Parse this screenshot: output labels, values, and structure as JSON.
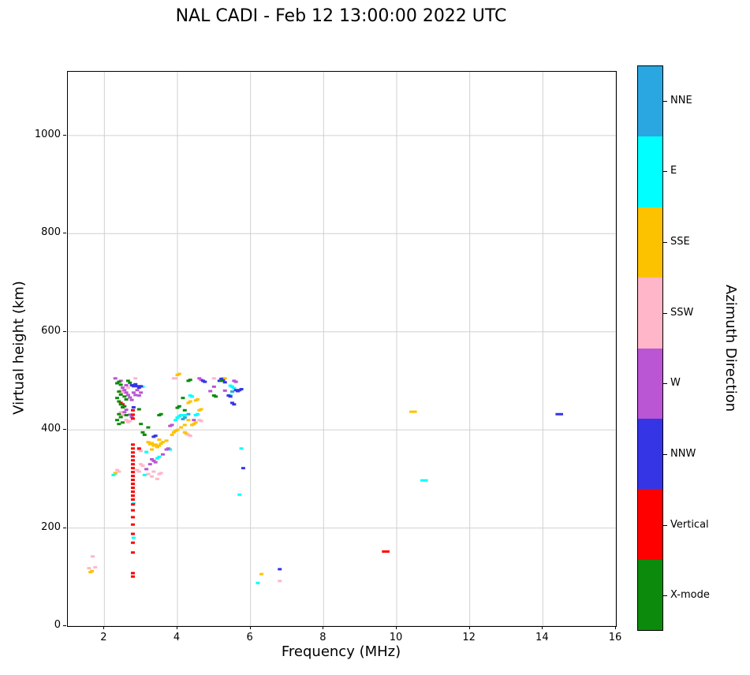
{
  "title": "NAL CADI - Feb 12 13:00:00 2022 UTC",
  "chart_data": {
    "type": "scatter",
    "title": "NAL CADI - Feb 12 13:00:00 2022 UTC",
    "xlabel": "Frequency (MHz)",
    "ylabel": "Virtual height (km)",
    "xlim": [
      1,
      16
    ],
    "ylim": [
      0,
      1130
    ],
    "x_ticks": [
      2,
      4,
      6,
      8,
      10,
      12,
      14,
      16
    ],
    "y_ticks": [
      0,
      200,
      400,
      600,
      800,
      1000
    ],
    "grid": true,
    "grid_color": "#d0d0d0",
    "marker": "horizontal-dash",
    "colorbar": {
      "label": "Azimuth Direction",
      "entries": [
        {
          "label": "NNE",
          "color": "#2aa7e0"
        },
        {
          "label": "E",
          "color": "#00ffff"
        },
        {
          "label": "SSE",
          "color": "#fcc200"
        },
        {
          "label": "SSW",
          "color": "#ffb6c9"
        },
        {
          "label": "W",
          "color": "#ba55d3"
        },
        {
          "label": "NNW",
          "color": "#3535e6"
        },
        {
          "label": "Vertical",
          "color": "#ff0000"
        },
        {
          "label": "X-mode",
          "color": "#0c8a0c"
        }
      ]
    },
    "series": [
      {
        "name": "NNE",
        "color": "#2aa7e0",
        "points": [
          [
            4.15,
            422
          ],
          [
            4.2,
            425
          ],
          [
            4.3,
            432
          ],
          [
            5.5,
            478
          ]
        ]
      },
      {
        "name": "E",
        "color": "#00ffff",
        "points": [
          [
            2.25,
            308
          ],
          [
            2.3,
            311
          ],
          [
            2.8,
            180
          ],
          [
            2.8,
            250
          ],
          [
            3.05,
            488
          ],
          [
            3.1,
            308
          ],
          [
            3.15,
            355
          ],
          [
            3.45,
            342
          ],
          [
            3.5,
            345
          ],
          [
            3.8,
            360
          ],
          [
            3.95,
            420
          ],
          [
            4.0,
            425
          ],
          [
            4.05,
            428
          ],
          [
            4.1,
            430
          ],
          [
            4.2,
            430
          ],
          [
            4.35,
            470
          ],
          [
            4.4,
            468
          ],
          [
            4.5,
            430
          ],
          [
            4.55,
            432
          ],
          [
            5.45,
            470
          ],
          [
            5.45,
            490
          ],
          [
            5.5,
            488
          ],
          [
            5.55,
            485
          ],
          [
            5.7,
            268
          ],
          [
            5.75,
            362
          ],
          [
            6.2,
            88
          ],
          [
            10.7,
            297
          ],
          [
            10.8,
            297
          ]
        ]
      },
      {
        "name": "SSE",
        "color": "#fcc200",
        "points": [
          [
            1.62,
            110
          ],
          [
            1.66,
            112
          ],
          [
            2.3,
            312
          ],
          [
            3.2,
            375
          ],
          [
            3.25,
            371
          ],
          [
            3.3,
            373
          ],
          [
            3.3,
            360
          ],
          [
            3.35,
            368
          ],
          [
            3.4,
            370
          ],
          [
            3.45,
            365
          ],
          [
            3.5,
            368
          ],
          [
            3.5,
            380
          ],
          [
            3.55,
            372
          ],
          [
            3.6,
            375
          ],
          [
            3.7,
            378
          ],
          [
            3.85,
            390
          ],
          [
            3.9,
            395
          ],
          [
            3.95,
            398
          ],
          [
            4.0,
            400
          ],
          [
            4.1,
            405
          ],
          [
            4.2,
            410
          ],
          [
            4.2,
            395
          ],
          [
            4.25,
            392
          ],
          [
            4.3,
            420
          ],
          [
            4.3,
            455
          ],
          [
            4.35,
            458
          ],
          [
            4.4,
            410
          ],
          [
            4.45,
            412
          ],
          [
            4.5,
            415
          ],
          [
            4.5,
            460
          ],
          [
            4.55,
            462
          ],
          [
            4.6,
            440
          ],
          [
            4.65,
            442
          ],
          [
            4.0,
            512
          ],
          [
            4.05,
            514
          ],
          [
            5.25,
            505
          ],
          [
            5.3,
            505
          ],
          [
            6.3,
            106
          ],
          [
            10.4,
            437
          ],
          [
            10.5,
            437
          ]
        ]
      },
      {
        "name": "SSW",
        "color": "#ffb6c9",
        "points": [
          [
            1.58,
            118
          ],
          [
            1.68,
            142
          ],
          [
            1.75,
            120
          ],
          [
            2.35,
            318
          ],
          [
            2.4,
            315
          ],
          [
            2.45,
            480
          ],
          [
            2.5,
            476
          ],
          [
            2.45,
            436
          ],
          [
            2.5,
            430
          ],
          [
            2.6,
            420
          ],
          [
            2.65,
            416
          ],
          [
            2.65,
            486
          ],
          [
            2.7,
            418
          ],
          [
            2.85,
            505
          ],
          [
            2.9,
            318
          ],
          [
            2.95,
            315
          ],
          [
            2.95,
            360
          ],
          [
            3.0,
            330
          ],
          [
            3.0,
            357
          ],
          [
            3.05,
            327
          ],
          [
            3.2,
            310
          ],
          [
            3.3,
            305
          ],
          [
            3.35,
            315
          ],
          [
            3.45,
            300
          ],
          [
            3.5,
            310
          ],
          [
            3.55,
            312
          ],
          [
            3.9,
            505
          ],
          [
            3.95,
            505
          ],
          [
            4.3,
            390
          ],
          [
            4.35,
            388
          ],
          [
            4.6,
            420
          ],
          [
            4.65,
            418
          ],
          [
            5.0,
            505
          ],
          [
            6.8,
            92
          ]
        ]
      },
      {
        "name": "W",
        "color": "#ba55d3",
        "points": [
          [
            2.3,
            505
          ],
          [
            2.45,
            500
          ],
          [
            2.5,
            486
          ],
          [
            2.55,
            481
          ],
          [
            2.55,
            436
          ],
          [
            2.6,
            476
          ],
          [
            2.6,
            491
          ],
          [
            2.6,
            441
          ],
          [
            2.65,
            471
          ],
          [
            2.7,
            466
          ],
          [
            2.7,
            431
          ],
          [
            2.75,
            461
          ],
          [
            2.75,
            426
          ],
          [
            2.8,
            476
          ],
          [
            2.85,
            471
          ],
          [
            2.9,
            481
          ],
          [
            2.95,
            470
          ],
          [
            3.0,
            476
          ],
          [
            3.15,
            320
          ],
          [
            3.25,
            330
          ],
          [
            3.3,
            340
          ],
          [
            3.35,
            337
          ],
          [
            3.4,
            334
          ],
          [
            3.6,
            350
          ],
          [
            3.7,
            360
          ],
          [
            3.75,
            362
          ],
          [
            3.8,
            408
          ],
          [
            3.85,
            410
          ],
          [
            4.45,
            420
          ],
          [
            4.6,
            505
          ],
          [
            4.65,
            502
          ],
          [
            4.9,
            479
          ],
          [
            5.0,
            488
          ],
          [
            5.3,
            480
          ],
          [
            5.55,
            500
          ],
          [
            5.6,
            498
          ]
        ]
      },
      {
        "name": "NNW",
        "color": "#3535e6",
        "points": [
          [
            2.75,
            491
          ],
          [
            2.8,
            489
          ],
          [
            2.8,
            446
          ],
          [
            2.85,
            493
          ],
          [
            2.9,
            489
          ],
          [
            2.95,
            486
          ],
          [
            3.0,
            489
          ],
          [
            3.35,
            386
          ],
          [
            3.4,
            388
          ],
          [
            4.7,
            500
          ],
          [
            4.75,
            498
          ],
          [
            5.15,
            500
          ],
          [
            5.2,
            504
          ],
          [
            5.25,
            501
          ],
          [
            5.3,
            497
          ],
          [
            5.4,
            470
          ],
          [
            5.45,
            468
          ],
          [
            5.5,
            455
          ],
          [
            5.55,
            452
          ],
          [
            5.6,
            481
          ],
          [
            5.65,
            479
          ],
          [
            5.7,
            481
          ],
          [
            5.75,
            483
          ],
          [
            5.8,
            322
          ],
          [
            6.8,
            116
          ],
          [
            14.4,
            432
          ],
          [
            14.5,
            432
          ]
        ]
      },
      {
        "name": "Vertical",
        "color": "#ff0000",
        "points": [
          [
            2.78,
            101
          ],
          [
            2.78,
            108
          ],
          [
            2.78,
            150
          ],
          [
            2.78,
            170
          ],
          [
            2.78,
            188
          ],
          [
            2.78,
            207
          ],
          [
            2.78,
            222
          ],
          [
            2.78,
            236
          ],
          [
            2.78,
            248
          ],
          [
            2.78,
            258
          ],
          [
            2.78,
            266
          ],
          [
            2.78,
            274
          ],
          [
            2.78,
            282
          ],
          [
            2.78,
            290
          ],
          [
            2.78,
            298
          ],
          [
            2.78,
            306
          ],
          [
            2.78,
            314
          ],
          [
            2.78,
            322
          ],
          [
            2.78,
            330
          ],
          [
            2.78,
            338
          ],
          [
            2.78,
            346
          ],
          [
            2.78,
            354
          ],
          [
            2.78,
            362
          ],
          [
            2.78,
            370
          ],
          [
            2.78,
            423
          ],
          [
            2.78,
            431
          ],
          [
            2.78,
            440
          ],
          [
            2.45,
            455
          ],
          [
            2.5,
            452
          ],
          [
            2.95,
            362
          ],
          [
            9.65,
            152
          ],
          [
            9.75,
            152
          ]
        ]
      },
      {
        "name": "X-mode",
        "color": "#0c8a0c",
        "points": [
          [
            2.35,
            495
          ],
          [
            2.4,
            498
          ],
          [
            2.45,
            492
          ],
          [
            2.4,
            478
          ],
          [
            2.45,
            472
          ],
          [
            2.35,
            465
          ],
          [
            2.4,
            458
          ],
          [
            2.45,
            452
          ],
          [
            2.5,
            446
          ],
          [
            2.4,
            432
          ],
          [
            2.45,
            426
          ],
          [
            2.35,
            420
          ],
          [
            2.5,
            415
          ],
          [
            2.55,
            468
          ],
          [
            2.6,
            462
          ],
          [
            2.55,
            448
          ],
          [
            2.65,
            500
          ],
          [
            2.7,
            496
          ],
          [
            2.6,
            430
          ],
          [
            2.4,
            412
          ],
          [
            2.95,
            442
          ],
          [
            3.0,
            412
          ],
          [
            3.05,
            395
          ],
          [
            3.1,
            390
          ],
          [
            3.2,
            405
          ],
          [
            3.5,
            430
          ],
          [
            3.55,
            432
          ],
          [
            4.0,
            445
          ],
          [
            4.05,
            448
          ],
          [
            4.2,
            440
          ],
          [
            4.3,
            500
          ],
          [
            4.35,
            502
          ],
          [
            4.15,
            465
          ],
          [
            5.0,
            470
          ],
          [
            5.05,
            468
          ],
          [
            5.2,
            500
          ]
        ]
      }
    ]
  }
}
